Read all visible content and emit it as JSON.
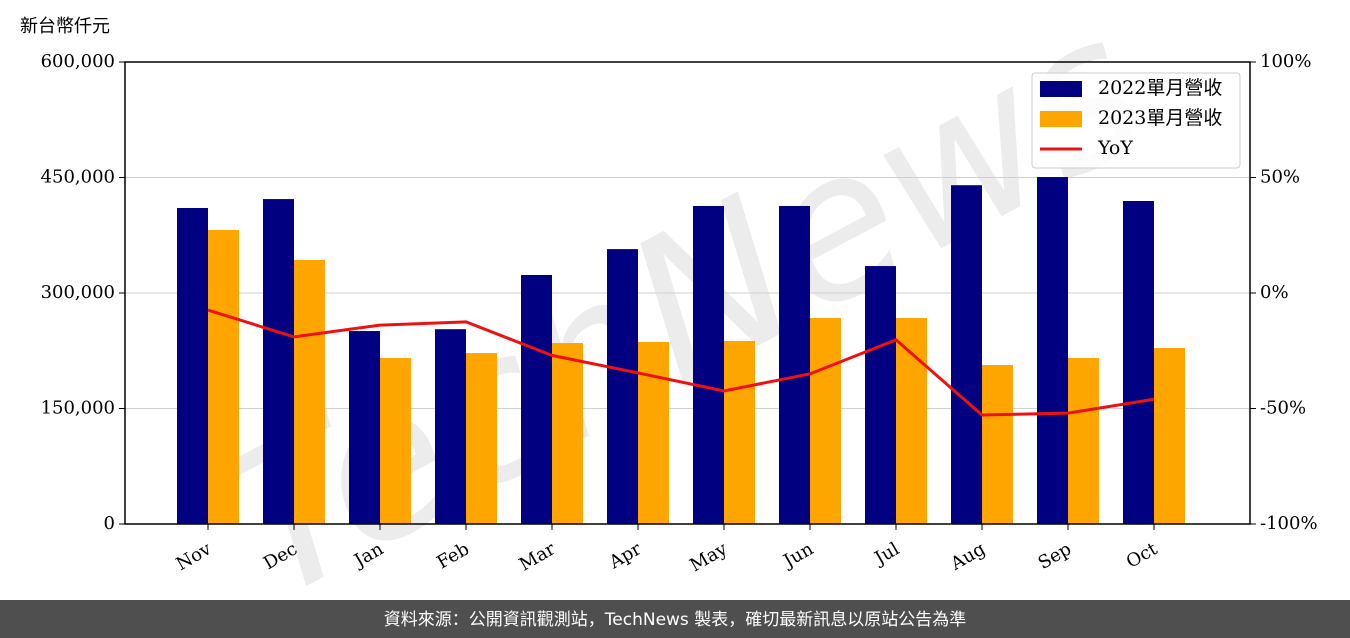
{
  "chart_data": {
    "type": "bar",
    "y_label": "新台幣仟元",
    "watermark": "TechNews",
    "footer": "資料來源：公開資訊觀測站，TechNews 製表，確切最新訊息以原站公告為準",
    "categories": [
      "Nov",
      "Dec",
      "Jan",
      "Feb",
      "Mar",
      "Apr",
      "May",
      "Jun",
      "Jul",
      "Aug",
      "Sep",
      "Oct"
    ],
    "series": [
      {
        "name": "2022單月營收",
        "color": "#000080",
        "values": [
          410400,
          422000,
          250600,
          253000,
          323400,
          357000,
          413000,
          413000,
          335000,
          440000,
          450600,
          419500
        ]
      },
      {
        "name": "2023單月營收",
        "color": "#ffa500",
        "values": [
          381800,
          342900,
          215600,
          222000,
          235000,
          236400,
          237700,
          267500,
          267500,
          206500,
          215600,
          228600
        ]
      },
      {
        "name": "YoY",
        "type": "line",
        "axis": "y2",
        "color": "#ee1111",
        "values": [
          -7.4,
          -19,
          -13.9,
          -12.5,
          -27,
          -34.6,
          -42.4,
          -35,
          -20.3,
          -52.8,
          -52,
          -46
        ]
      }
    ],
    "ylim": [
      0,
      600000
    ],
    "yticks": [
      0,
      {
        "value": 150000,
        "label": "150,000"
      },
      {
        "value": 300000,
        "label": "300,000"
      },
      {
        "value": 450000,
        "label": "450,000"
      },
      {
        "value": 600000,
        "label": "600,000"
      }
    ],
    "y2lim": [
      -100,
      100
    ],
    "y2ticks": [
      {
        "value": -100,
        "label": "-100%"
      },
      {
        "value": -50,
        "label": "-50%"
      },
      {
        "value": 0,
        "label": "0%"
      },
      {
        "value": 50,
        "label": "50%"
      },
      {
        "value": 100,
        "label": "100%"
      }
    ],
    "grid": true,
    "legend": "upper right"
  }
}
